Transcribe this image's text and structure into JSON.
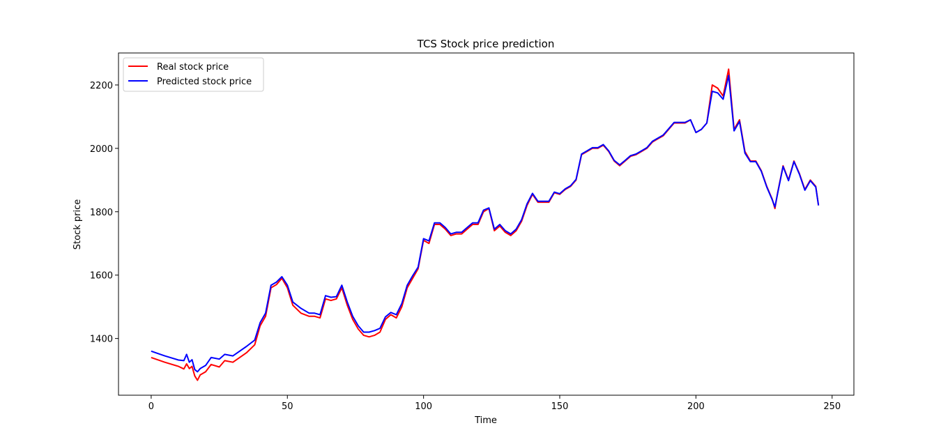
{
  "chart_data": {
    "type": "line",
    "title": "TCS Stock price prediction",
    "xlabel": "Time",
    "ylabel": "Stock price",
    "xlim": [
      -12,
      258
    ],
    "ylim": [
      1221,
      2301
    ],
    "xticks": [
      0,
      50,
      100,
      150,
      200,
      250
    ],
    "yticks": [
      1400,
      1600,
      1800,
      2000,
      2200
    ],
    "grid": false,
    "legend_position": "top-left",
    "series": [
      {
        "name": "Real stock price",
        "color": "#ff0000",
        "x": [
          0,
          5,
          10,
          12,
          13,
          14,
          15,
          16,
          17,
          18,
          20,
          22,
          25,
          27,
          30,
          35,
          38,
          40,
          42,
          44,
          46,
          48,
          50,
          52,
          55,
          58,
          60,
          62,
          64,
          66,
          68,
          70,
          72,
          74,
          76,
          78,
          80,
          82,
          84,
          86,
          88,
          90,
          92,
          94,
          96,
          98,
          100,
          102,
          104,
          106,
          108,
          110,
          112,
          114,
          116,
          118,
          120,
          122,
          124,
          126,
          128,
          130,
          132,
          134,
          136,
          138,
          140,
          142,
          144,
          146,
          148,
          150,
          152,
          154,
          156,
          158,
          160,
          162,
          164,
          166,
          168,
          170,
          172,
          174,
          176,
          178,
          180,
          182,
          184,
          186,
          188,
          190,
          192,
          194,
          196,
          198,
          200,
          202,
          204,
          206,
          208,
          210,
          212,
          214,
          216,
          218,
          220,
          222,
          224,
          226,
          228,
          229,
          230,
          232,
          234,
          236,
          238,
          240,
          242,
          244,
          245
        ],
        "y": [
          1340,
          1325,
          1312,
          1304,
          1320,
          1305,
          1312,
          1282,
          1268,
          1285,
          1295,
          1318,
          1310,
          1330,
          1325,
          1355,
          1380,
          1440,
          1470,
          1560,
          1570,
          1590,
          1560,
          1505,
          1480,
          1470,
          1470,
          1465,
          1525,
          1520,
          1525,
          1560,
          1505,
          1460,
          1430,
          1410,
          1405,
          1410,
          1420,
          1460,
          1475,
          1465,
          1500,
          1560,
          1590,
          1620,
          1710,
          1700,
          1760,
          1760,
          1745,
          1725,
          1730,
          1730,
          1745,
          1760,
          1760,
          1800,
          1810,
          1740,
          1755,
          1735,
          1725,
          1740,
          1770,
          1820,
          1855,
          1830,
          1830,
          1830,
          1860,
          1855,
          1870,
          1880,
          1900,
          1980,
          1990,
          2000,
          2000,
          2010,
          1990,
          1960,
          1945,
          1960,
          1975,
          1980,
          1990,
          2000,
          2020,
          2030,
          2040,
          2060,
          2080,
          2080,
          2080,
          2090,
          2050,
          2060,
          2080,
          2200,
          2190,
          2165,
          2250,
          2060,
          2090,
          1990,
          1960,
          1960,
          1930,
          1880,
          1840,
          1810,
          1860,
          1945,
          1900,
          1960,
          1920,
          1870,
          1900,
          1880,
          1820
        ]
      },
      {
        "name": "Predicted stock price",
        "color": "#0000ff",
        "x": [
          0,
          5,
          10,
          12,
          13,
          14,
          15,
          16,
          17,
          18,
          20,
          22,
          25,
          27,
          30,
          35,
          38,
          40,
          42,
          44,
          46,
          48,
          50,
          52,
          55,
          58,
          60,
          62,
          64,
          66,
          68,
          70,
          72,
          74,
          76,
          78,
          80,
          82,
          84,
          86,
          88,
          90,
          92,
          94,
          96,
          98,
          100,
          102,
          104,
          106,
          108,
          110,
          112,
          114,
          116,
          118,
          120,
          122,
          124,
          126,
          128,
          130,
          132,
          134,
          136,
          138,
          140,
          142,
          144,
          146,
          148,
          150,
          152,
          154,
          156,
          158,
          160,
          162,
          164,
          166,
          168,
          170,
          172,
          174,
          176,
          178,
          180,
          182,
          184,
          186,
          188,
          190,
          192,
          194,
          196,
          198,
          200,
          202,
          204,
          206,
          208,
          210,
          212,
          214,
          216,
          218,
          220,
          222,
          224,
          226,
          228,
          229,
          230,
          232,
          234,
          236,
          238,
          240,
          242,
          244,
          245
        ],
        "y": [
          1360,
          1345,
          1332,
          1330,
          1350,
          1325,
          1333,
          1302,
          1295,
          1305,
          1315,
          1340,
          1335,
          1350,
          1345,
          1375,
          1395,
          1450,
          1480,
          1568,
          1578,
          1595,
          1568,
          1515,
          1495,
          1480,
          1480,
          1475,
          1535,
          1530,
          1532,
          1568,
          1515,
          1470,
          1440,
          1420,
          1420,
          1425,
          1432,
          1468,
          1482,
          1475,
          1510,
          1568,
          1598,
          1625,
          1715,
          1708,
          1765,
          1765,
          1750,
          1730,
          1735,
          1735,
          1750,
          1765,
          1765,
          1805,
          1812,
          1745,
          1760,
          1740,
          1730,
          1745,
          1775,
          1825,
          1858,
          1833,
          1833,
          1833,
          1862,
          1857,
          1872,
          1882,
          1902,
          1982,
          1992,
          2002,
          2002,
          2012,
          1992,
          1962,
          1948,
          1962,
          1977,
          1982,
          1992,
          2002,
          2022,
          2032,
          2042,
          2062,
          2082,
          2082,
          2082,
          2090,
          2050,
          2060,
          2080,
          2180,
          2175,
          2155,
          2230,
          2055,
          2085,
          1985,
          1958,
          1958,
          1928,
          1878,
          1838,
          1815,
          1858,
          1943,
          1898,
          1958,
          1918,
          1868,
          1898,
          1878,
          1820
        ]
      }
    ]
  }
}
